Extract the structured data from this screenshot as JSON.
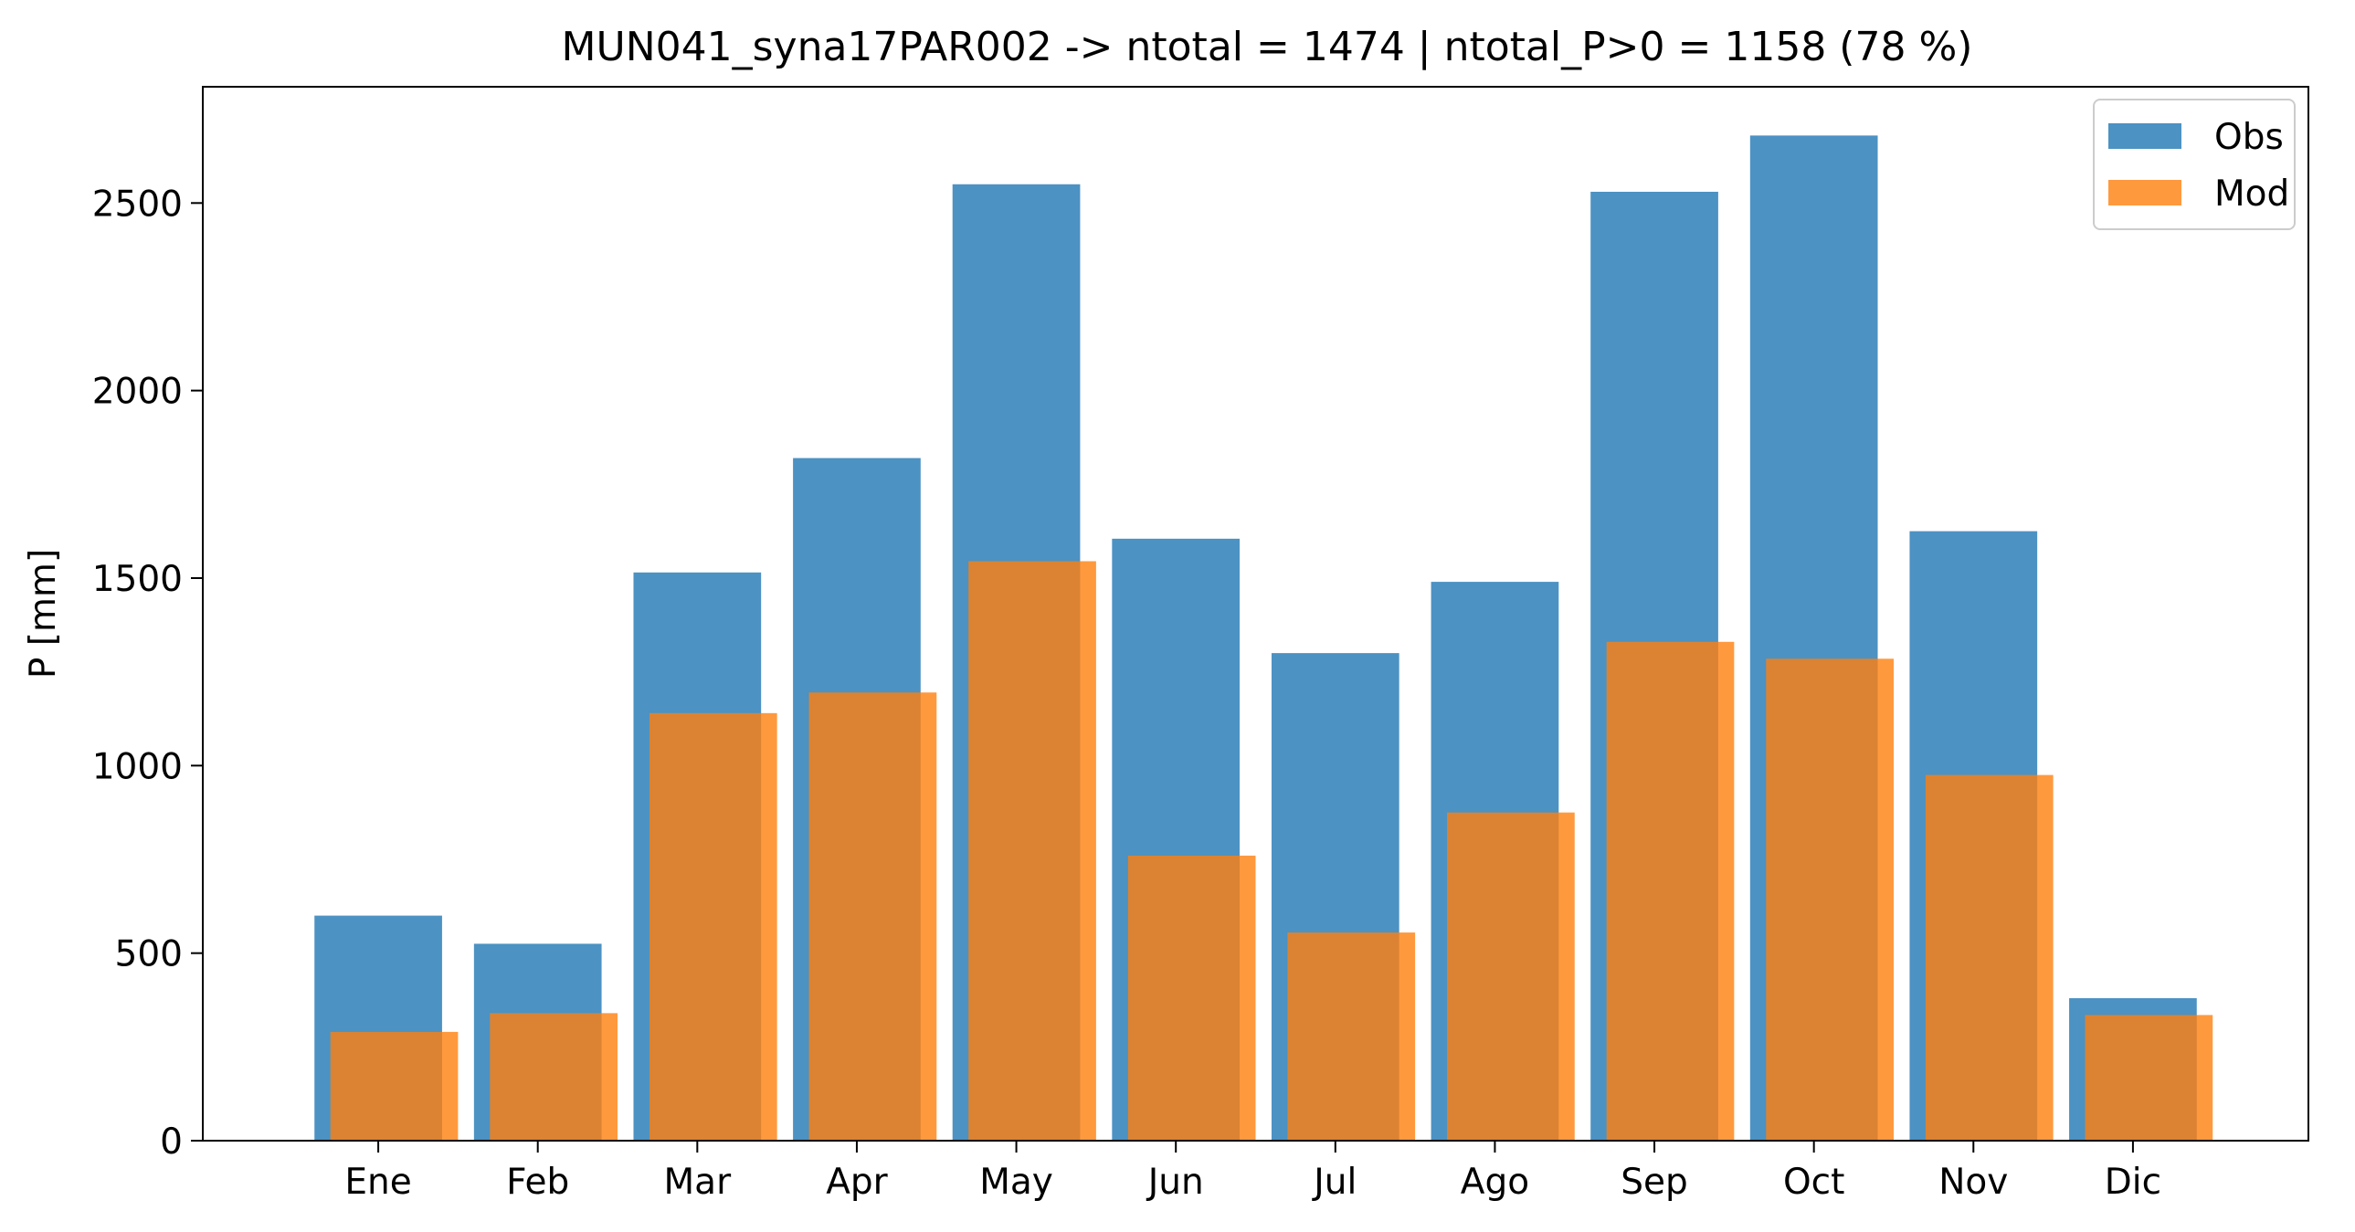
{
  "chart_data": {
    "type": "bar",
    "title": "MUN041_syna17PAR002 -> ntotal = 1474 | ntotal_P>0 = 1158 (78 %)",
    "xlabel": "",
    "ylabel": "P [mm]",
    "categories": [
      "Ene",
      "Feb",
      "Mar",
      "Apr",
      "May",
      "Jun",
      "Jul",
      "Ago",
      "Sep",
      "Oct",
      "Nov",
      "Dic"
    ],
    "series": [
      {
        "name": "Obs",
        "color": "#1f77b4",
        "opacity": 0.8,
        "values": [
          600,
          525,
          1515,
          1820,
          2550,
          1605,
          1300,
          1490,
          2530,
          2680,
          1625,
          380
        ]
      },
      {
        "name": "Mod",
        "color": "#ff7f0e",
        "opacity": 0.8,
        "values": [
          290,
          340,
          1140,
          1195,
          1545,
          760,
          555,
          875,
          1330,
          1285,
          975,
          335
        ]
      }
    ],
    "ylim": [
      0,
      2810
    ],
    "yticks": [
      0,
      500,
      1000,
      1500,
      2000,
      2500
    ],
    "grid": false,
    "legend": "upper right"
  }
}
